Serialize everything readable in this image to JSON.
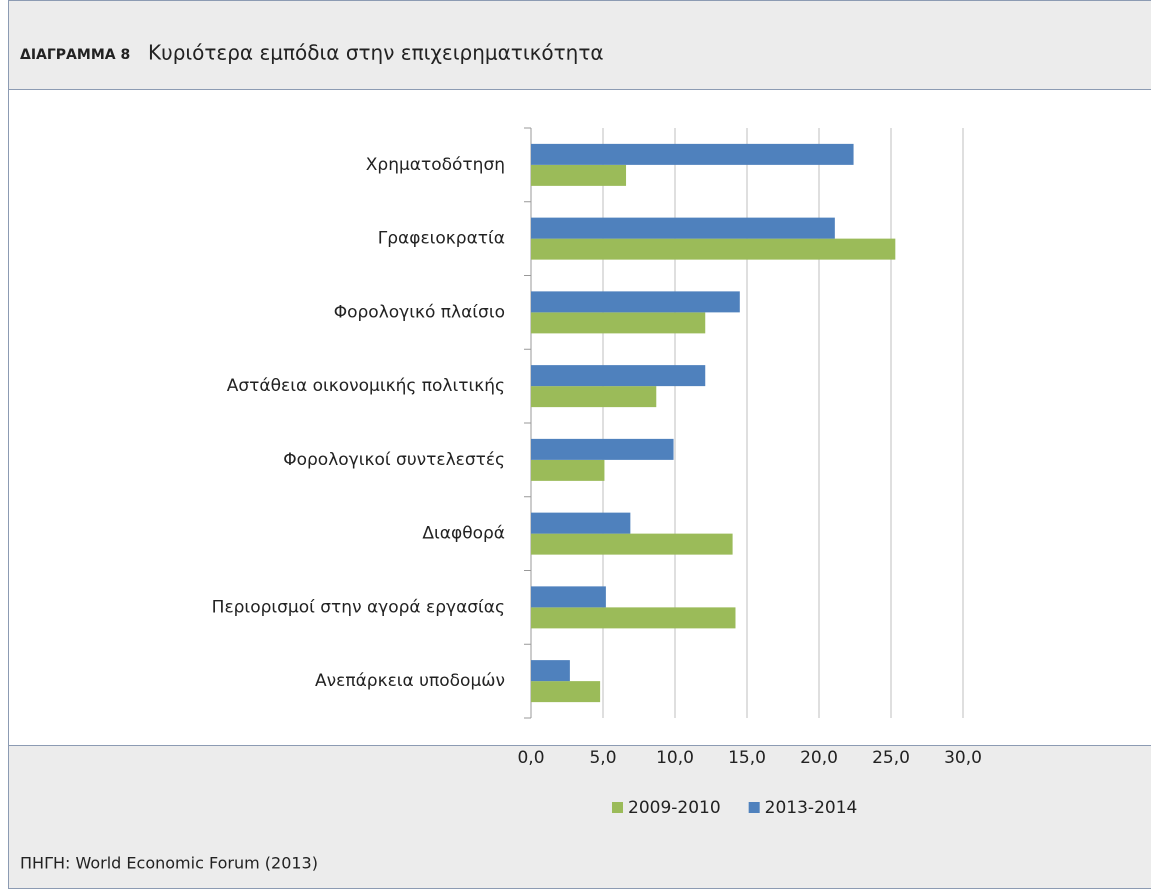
{
  "chart_data": {
    "type": "hbar",
    "figure_label": "ΔΙΑΓΡΑΜΜΑ 8",
    "title": "Κυριότερα εμπόδια στην επιχειρηματικότητα",
    "source": "ΠΗΓΗ: World Economic Forum (2013)",
    "categories": [
      "Χρηματοδότηση",
      "Γραφειοκρατία",
      "Φορολογικό πλαίσιο",
      "Αστάθεια οικονομικής πολιτικής",
      "Φορολογικοί συντελεστές",
      "Διαφθορά",
      "Περιορισμοί στην αγορά εργασίας",
      "Ανεπάρκεια υποδομών"
    ],
    "series": [
      {
        "name": "2009-2010",
        "color": "#9bbb59",
        "values": [
          6.6,
          25.3,
          12.1,
          8.7,
          5.1,
          14.0,
          14.2,
          4.8
        ]
      },
      {
        "name": "2013-2014",
        "color": "#4f81bd",
        "values": [
          22.4,
          21.1,
          14.5,
          12.1,
          9.9,
          6.9,
          5.2,
          2.7
        ]
      }
    ],
    "xlim": [
      0,
      30
    ],
    "xticks": [
      {
        "value": 0,
        "label": "0,0"
      },
      {
        "value": 5,
        "label": "5,0"
      },
      {
        "value": 10,
        "label": "10,0"
      },
      {
        "value": 15,
        "label": "15,0"
      },
      {
        "value": 20,
        "label": "20,0"
      },
      {
        "value": 25,
        "label": "25,0"
      },
      {
        "value": 30,
        "label": "30,0"
      }
    ],
    "grid": true,
    "legend": "bottom"
  }
}
